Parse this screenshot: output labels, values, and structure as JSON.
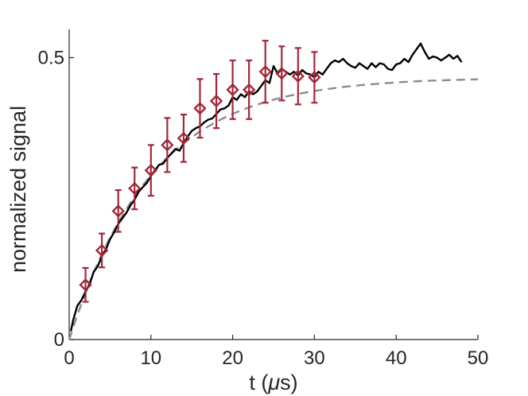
{
  "chart_data": {
    "type": "line",
    "title": "",
    "xlabel_prefix": "t (",
    "xlabel_unit": "μ",
    "xlabel_suffix": "s)",
    "ylabel": "normalized signal",
    "xlim": [
      0,
      50
    ],
    "ylim": [
      0,
      0.55
    ],
    "xticks": [
      0,
      10,
      20,
      30,
      40,
      50
    ],
    "xtick_labels": [
      "0",
      "10",
      "20",
      "30",
      "40",
      "50"
    ],
    "yticks": [
      0,
      0.5
    ],
    "ytick_labels": [
      "0",
      "0.5"
    ],
    "grid": false,
    "legend": "none",
    "colors": {
      "signal": "#000000",
      "fit": "#8c8c8c",
      "markers": "#a3273b",
      "axes": "#262626"
    },
    "series": [
      {
        "style": "solid",
        "x": [
          0.2,
          0.5,
          1,
          1.5,
          2,
          2.5,
          3,
          3.5,
          4,
          4.5,
          5,
          5.5,
          6,
          6.5,
          7,
          7.5,
          8,
          8.5,
          9,
          9.5,
          10,
          10.5,
          11,
          11.5,
          12,
          12.5,
          13,
          13.5,
          14,
          14.5,
          15,
          15.5,
          16,
          16.5,
          17,
          17.5,
          18,
          18.5,
          19,
          19.5,
          20,
          20.5,
          21,
          21.5,
          22,
          22.5,
          23,
          23.5,
          24,
          24.5,
          25,
          25.5,
          26,
          26.5,
          27,
          27.5,
          28,
          28.5,
          29,
          29.5,
          30,
          30.5,
          31,
          31.5,
          32,
          32.5,
          33,
          33.5,
          34,
          34.5,
          35,
          35.5,
          36,
          36.5,
          37,
          37.5,
          38,
          38.5,
          39,
          39.5,
          40,
          40.5,
          41,
          41.5,
          42,
          42.5,
          43,
          43.5,
          44,
          44.5,
          45,
          45.5,
          46,
          46.5,
          47,
          47.5,
          48
        ],
        "y": [
          0.015,
          0.035,
          0.06,
          0.07,
          0.085,
          0.098,
          0.12,
          0.13,
          0.148,
          0.16,
          0.178,
          0.19,
          0.205,
          0.215,
          0.225,
          0.238,
          0.248,
          0.262,
          0.27,
          0.278,
          0.29,
          0.3,
          0.31,
          0.312,
          0.322,
          0.33,
          0.338,
          0.335,
          0.348,
          0.36,
          0.37,
          0.375,
          0.378,
          0.385,
          0.39,
          0.392,
          0.4,
          0.408,
          0.41,
          0.415,
          0.43,
          0.425,
          0.435,
          0.43,
          0.44,
          0.435,
          0.44,
          0.45,
          0.46,
          0.455,
          0.485,
          0.472,
          0.48,
          0.475,
          0.47,
          0.475,
          0.468,
          0.478,
          0.472,
          0.47,
          0.465,
          0.475,
          0.47,
          0.48,
          0.49,
          0.495,
          0.492,
          0.498,
          0.49,
          0.485,
          0.482,
          0.49,
          0.485,
          0.48,
          0.49,
          0.483,
          0.49,
          0.488,
          0.48,
          0.478,
          0.488,
          0.49,
          0.498,
          0.492,
          0.505,
          0.515,
          0.525,
          0.51,
          0.498,
          0.502,
          0.5,
          0.495,
          0.5,
          0.505,
          0.498,
          0.503,
          0.492
        ]
      },
      {
        "style": "dashed",
        "x": [
          0,
          1,
          2,
          3,
          4,
          5,
          6,
          7,
          8,
          9,
          10,
          11,
          12,
          13,
          14,
          15,
          16,
          17,
          18,
          19,
          20,
          21,
          22,
          23,
          24,
          25,
          26,
          27,
          28,
          29,
          30,
          31,
          32,
          33,
          34,
          35,
          36,
          37,
          38,
          39,
          40,
          41,
          42,
          43,
          44,
          45,
          46,
          47,
          48,
          49,
          50
        ],
        "y": [
          0,
          0.0436,
          0.0831,
          0.1189,
          0.1513,
          0.1808,
          0.2075,
          0.2316,
          0.2536,
          0.2734,
          0.2914,
          0.3078,
          0.3225,
          0.3359,
          0.348,
          0.359,
          0.369,
          0.378,
          0.3861,
          0.3935,
          0.4002,
          0.4063,
          0.4118,
          0.4168,
          0.4213,
          0.4254,
          0.4291,
          0.4325,
          0.4355,
          0.4383,
          0.4408,
          0.4431,
          0.4451,
          0.447,
          0.4487,
          0.4502,
          0.4516,
          0.4529,
          0.454,
          0.455,
          0.456,
          0.4568,
          0.4576,
          0.4583,
          0.4589,
          0.4594,
          0.4599,
          0.4604,
          0.4608,
          0.4612,
          0.4615
        ]
      },
      {
        "style": "diamond-errorbar",
        "x": [
          2,
          4,
          6,
          8,
          10,
          12,
          14,
          16,
          18,
          20,
          22,
          24,
          26,
          28,
          30
        ],
        "y": [
          0.097,
          0.158,
          0.228,
          0.268,
          0.3,
          0.345,
          0.357,
          0.41,
          0.423,
          0.443,
          0.443,
          0.475,
          0.472,
          0.467,
          0.465
        ],
        "err": [
          0.03,
          0.03,
          0.037,
          0.037,
          0.045,
          0.048,
          0.042,
          0.052,
          0.048,
          0.052,
          0.052,
          0.055,
          0.048,
          0.05,
          0.045
        ]
      }
    ]
  }
}
